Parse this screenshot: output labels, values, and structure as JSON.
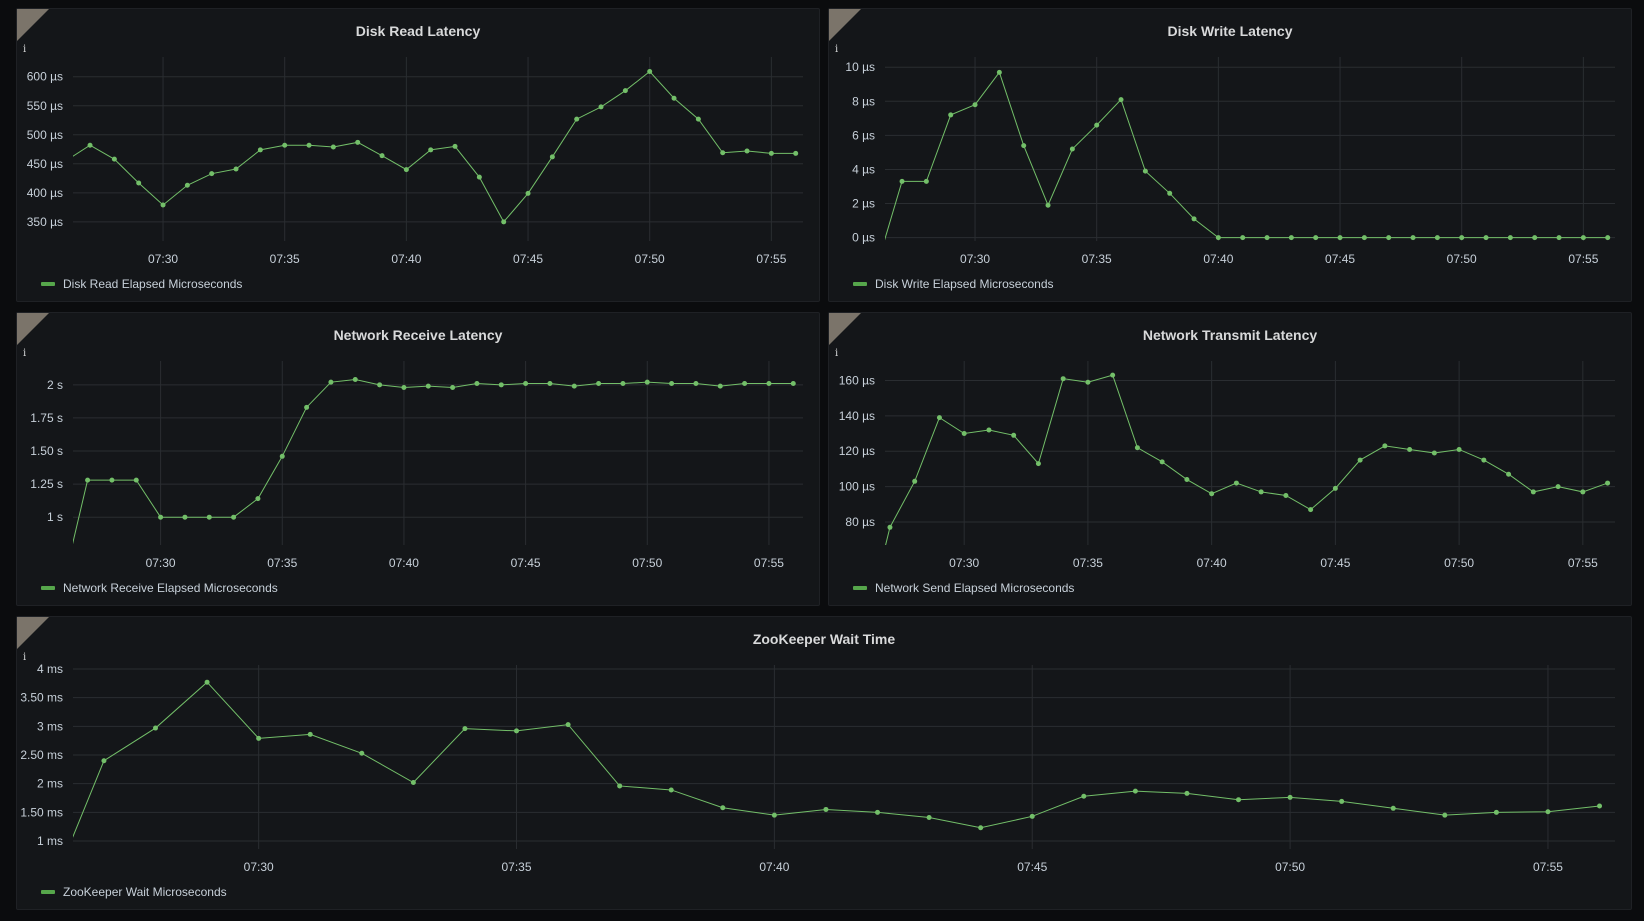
{
  "colors": {
    "background": "#0b0c0e",
    "panel": "#141619",
    "series": "#73bf69",
    "legend_swatch": "#56a64b",
    "grid": "#2a2d31",
    "info_corner": "#7b746a"
  },
  "info_icon": "info-icon",
  "chart_data": [
    {
      "type": "line",
      "title": "Disk Read Latency",
      "legend": "Disk Read Elapsed Microseconds",
      "legend_placement": "bottom-left",
      "grid": true,
      "xlim": [
        "07:26:18",
        "07:56:18"
      ],
      "xticks": [
        "07:30",
        "07:35",
        "07:40",
        "07:45",
        "07:50",
        "07:55"
      ],
      "ylim": [
        317,
        634
      ],
      "yticks": [
        350,
        400,
        450,
        500,
        550,
        600
      ],
      "ytick_labels": [
        "350 µs",
        "400 µs",
        "450 µs",
        "500 µs",
        "550 µs",
        "600 µs"
      ],
      "x": [
        "07:26",
        "07:27",
        "07:28",
        "07:29",
        "07:30",
        "07:31",
        "07:32",
        "07:33",
        "07:34",
        "07:35",
        "07:36",
        "07:37",
        "07:38",
        "07:39",
        "07:40",
        "07:41",
        "07:42",
        "07:43",
        "07:44",
        "07:45",
        "07:46",
        "07:47",
        "07:48",
        "07:49",
        "07:50",
        "07:51",
        "07:52",
        "07:53",
        "07:54",
        "07:55",
        "07:56"
      ],
      "y": [
        455,
        482,
        458,
        417,
        379,
        413,
        433,
        441,
        474,
        482,
        482,
        479,
        487,
        464,
        440,
        474,
        480,
        427,
        350,
        399,
        462,
        527,
        548,
        576,
        609,
        563,
        527,
        469,
        472,
        468,
        468
      ]
    },
    {
      "type": "line",
      "title": "Disk Write Latency",
      "legend": "Disk Write Elapsed Microseconds",
      "legend_placement": "bottom-left",
      "grid": true,
      "xlim": [
        "07:26:18",
        "07:56:18"
      ],
      "xticks": [
        "07:30",
        "07:35",
        "07:40",
        "07:45",
        "07:50",
        "07:55"
      ],
      "ylim": [
        -0.2,
        10.6
      ],
      "yticks": [
        0,
        2,
        4,
        6,
        8,
        10
      ],
      "ytick_labels": [
        "0 µs",
        "2 µs",
        "4 µs",
        "6 µs",
        "8 µs",
        "10 µs"
      ],
      "x": [
        "07:26",
        "07:27",
        "07:28",
        "07:29",
        "07:30",
        "07:31",
        "07:32",
        "07:33",
        "07:34",
        "07:35",
        "07:36",
        "07:37",
        "07:38",
        "07:39",
        "07:40",
        "07:41",
        "07:42",
        "07:43",
        "07:44",
        "07:45",
        "07:46",
        "07:47",
        "07:48",
        "07:49",
        "07:50",
        "07:51",
        "07:52",
        "07:53",
        "07:54",
        "07:55",
        "07:56"
      ],
      "y": [
        -1.5,
        3.3,
        3.3,
        7.2,
        7.8,
        9.7,
        5.4,
        1.9,
        5.2,
        6.6,
        8.1,
        3.9,
        2.6,
        1.1,
        0,
        0,
        0,
        0,
        0,
        0,
        0,
        0,
        0,
        0,
        0,
        0,
        0,
        0,
        0,
        0,
        0
      ]
    },
    {
      "type": "line",
      "title": "Network Receive Latency",
      "legend": "Network Receive Elapsed Microseconds",
      "legend_placement": "bottom-left",
      "grid": true,
      "xlim": [
        "07:26:24",
        "07:56:24"
      ],
      "xticks": [
        "07:30",
        "07:35",
        "07:40",
        "07:45",
        "07:50",
        "07:55"
      ],
      "ylim": [
        0.79,
        2.18
      ],
      "yticks": [
        1,
        1.25,
        1.5,
        1.75,
        2
      ],
      "ytick_labels": [
        "1 s",
        "1.25 s",
        "1.50 s",
        "1.75 s",
        "2 s"
      ],
      "x": [
        "07:26",
        "07:27",
        "07:28",
        "07:29",
        "07:30",
        "07:31",
        "07:32",
        "07:33",
        "07:34",
        "07:35",
        "07:36",
        "07:37",
        "07:38",
        "07:39",
        "07:40",
        "07:41",
        "07:42",
        "07:43",
        "07:44",
        "07:45",
        "07:46",
        "07:47",
        "07:48",
        "07:49",
        "07:50",
        "07:51",
        "07:52",
        "07:53",
        "07:54",
        "07:55",
        "07:56"
      ],
      "y": [
        0.5,
        1.28,
        1.28,
        1.28,
        1.0,
        1.0,
        1.0,
        1.0,
        1.14,
        1.46,
        1.83,
        2.02,
        2.04,
        2.0,
        1.98,
        1.99,
        1.98,
        2.01,
        2.0,
        2.01,
        2.01,
        1.99,
        2.01,
        2.01,
        2.02,
        2.01,
        2.01,
        1.99,
        2.01,
        2.01,
        2.01
      ]
    },
    {
      "type": "line",
      "title": "Network Transmit Latency",
      "legend": "Network Send Elapsed Microseconds",
      "legend_placement": "bottom-left",
      "grid": true,
      "xlim": [
        "07:26:48",
        "07:56:18"
      ],
      "xticks": [
        "07:30",
        "07:35",
        "07:40",
        "07:45",
        "07:50",
        "07:55"
      ],
      "ylim": [
        67,
        171
      ],
      "yticks": [
        80,
        100,
        120,
        140,
        160
      ],
      "ytick_labels": [
        "80 µs",
        "100 µs",
        "120 µs",
        "140 µs",
        "160 µs"
      ],
      "x": [
        "07:26",
        "07:27",
        "07:28",
        "07:29",
        "07:30",
        "07:31",
        "07:32",
        "07:33",
        "07:34",
        "07:35",
        "07:36",
        "07:37",
        "07:38",
        "07:39",
        "07:40",
        "07:41",
        "07:42",
        "07:43",
        "07:44",
        "07:45",
        "07:46",
        "07:47",
        "07:48",
        "07:49",
        "07:50",
        "07:51",
        "07:52",
        "07:53",
        "07:54",
        "07:55",
        "07:56"
      ],
      "y": [
        20,
        77,
        103,
        139,
        130,
        132,
        129,
        113,
        161,
        159,
        163,
        122,
        114,
        104,
        96,
        102,
        97,
        95,
        87,
        99,
        115,
        123,
        121,
        119,
        121,
        115,
        107,
        97,
        100,
        97,
        102
      ]
    },
    {
      "type": "line",
      "title": "ZooKeeper Wait Time",
      "legend": "ZooKeeper Wait Microseconds",
      "legend_placement": "bottom-left",
      "grid": true,
      "xlim": [
        "07:26:24",
        "07:56:18"
      ],
      "xticks": [
        "07:30",
        "07:35",
        "07:40",
        "07:45",
        "07:50",
        "07:55"
      ],
      "ylim": [
        0.86,
        4.07
      ],
      "yticks": [
        1,
        1.5,
        2,
        2.5,
        3,
        3.5,
        4
      ],
      "ytick_labels": [
        "1 ms",
        "1.50 ms",
        "2 ms",
        "2.50 ms",
        "3 ms",
        "3.50 ms",
        "4 ms"
      ],
      "x": [
        "07:26",
        "07:27",
        "07:28",
        "07:29",
        "07:30",
        "07:31",
        "07:32",
        "07:33",
        "07:34",
        "07:35",
        "07:36",
        "07:37",
        "07:38",
        "07:39",
        "07:40",
        "07:41",
        "07:42",
        "07:43",
        "07:44",
        "07:45",
        "07:46",
        "07:47",
        "07:48",
        "07:49",
        "07:50",
        "07:51",
        "07:52",
        "07:53",
        "07:54",
        "07:55",
        "07:56"
      ],
      "y": [
        0.2,
        2.4,
        2.97,
        3.77,
        2.79,
        2.86,
        2.53,
        2.02,
        2.96,
        2.92,
        3.03,
        1.96,
        1.89,
        1.58,
        1.45,
        1.55,
        1.5,
        1.41,
        1.23,
        1.43,
        1.78,
        1.87,
        1.83,
        1.72,
        1.76,
        1.69,
        1.57,
        1.45,
        1.5,
        1.51,
        1.61
      ]
    }
  ]
}
